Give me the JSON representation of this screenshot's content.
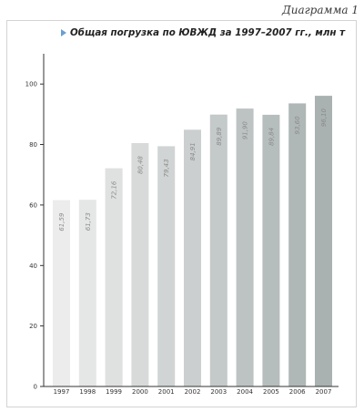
{
  "caption": "Диаграмма 1",
  "chart_data": {
    "type": "bar",
    "title": "Общая погрузка по ЮВЖД за 1997–2007 гг., млн т",
    "categories": [
      "1997",
      "1998",
      "1999",
      "2000",
      "2001",
      "2002",
      "2003",
      "2004",
      "2005",
      "2006",
      "2007"
    ],
    "values": [
      61.59,
      61.73,
      72.16,
      80.48,
      79.43,
      84.91,
      89.89,
      91.9,
      89.84,
      93.6,
      96.1
    ],
    "value_labels": [
      "61,59",
      "61,73",
      "72,16",
      "80,48",
      "79,43",
      "84,91",
      "89,89",
      "91,90",
      "89,84",
      "93,60",
      "96,10"
    ],
    "ylim": [
      0,
      110
    ],
    "yticks": [
      0,
      20,
      40,
      60,
      80,
      100
    ],
    "xlabel": "",
    "ylabel": "",
    "grid": false,
    "colors": {
      "bar_light": "#ececec",
      "bar_dark": "#a9b1b1",
      "axis": "#333333",
      "title_marker": "#6a9fd1"
    }
  }
}
